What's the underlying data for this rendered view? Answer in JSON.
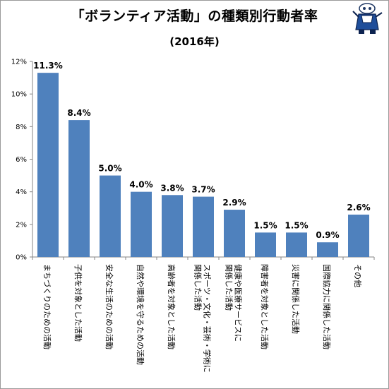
{
  "header": {
    "title": "「ボランティア活動」の種類別行動者率",
    "subtitle": "(2016年)"
  },
  "chart_data": {
    "type": "bar",
    "categories": [
      "まちづくりのための活動",
      "子供を対象とした活動",
      "安全な生活のための活動",
      "自然や環境を守るための活動",
      "高齢者を対象とした活動",
      "スポーツ・文化・芸術・学術に関係した活動",
      "健康や医療サービスに関係した活動",
      "障害者を対象とした活動",
      "災害に関係した活動",
      "国際協力に関係した活動",
      "その他"
    ],
    "category_lines": [
      [
        "まちづくりのための活動"
      ],
      [
        "子供を対象とした活動"
      ],
      [
        "安全な生活のための活動"
      ],
      [
        "自然や環境を守るための活動"
      ],
      [
        "高齢者を対象とした活動"
      ],
      [
        "スポーツ・文化・芸術・学術に",
        "関係した活動"
      ],
      [
        "健康や医療サービスに",
        "関係した活動"
      ],
      [
        "障害者を対象とした活動"
      ],
      [
        "災害に関係した活動"
      ],
      [
        "国際協力に関係した活動"
      ],
      [
        "その他"
      ]
    ],
    "values": [
      11.3,
      8.4,
      5.0,
      4.0,
      3.8,
      3.7,
      2.9,
      1.5,
      1.5,
      0.9,
      2.6
    ],
    "value_labels": [
      "11.3%",
      "8.4%",
      "5.0%",
      "4.0%",
      "3.8%",
      "3.7%",
      "2.9%",
      "1.5%",
      "1.5%",
      "0.9%",
      "2.6%"
    ],
    "ylim": [
      0,
      12
    ],
    "yticks": [
      0,
      2,
      4,
      6,
      8,
      10,
      12
    ],
    "ytick_labels": [
      "0%",
      "2%",
      "4%",
      "6%",
      "8%",
      "10%",
      "12%"
    ],
    "grid": false,
    "bar_color": "#4f81bd",
    "axis_color": "#868686"
  },
  "mascot": {
    "icon": "mascot-character-icon"
  }
}
